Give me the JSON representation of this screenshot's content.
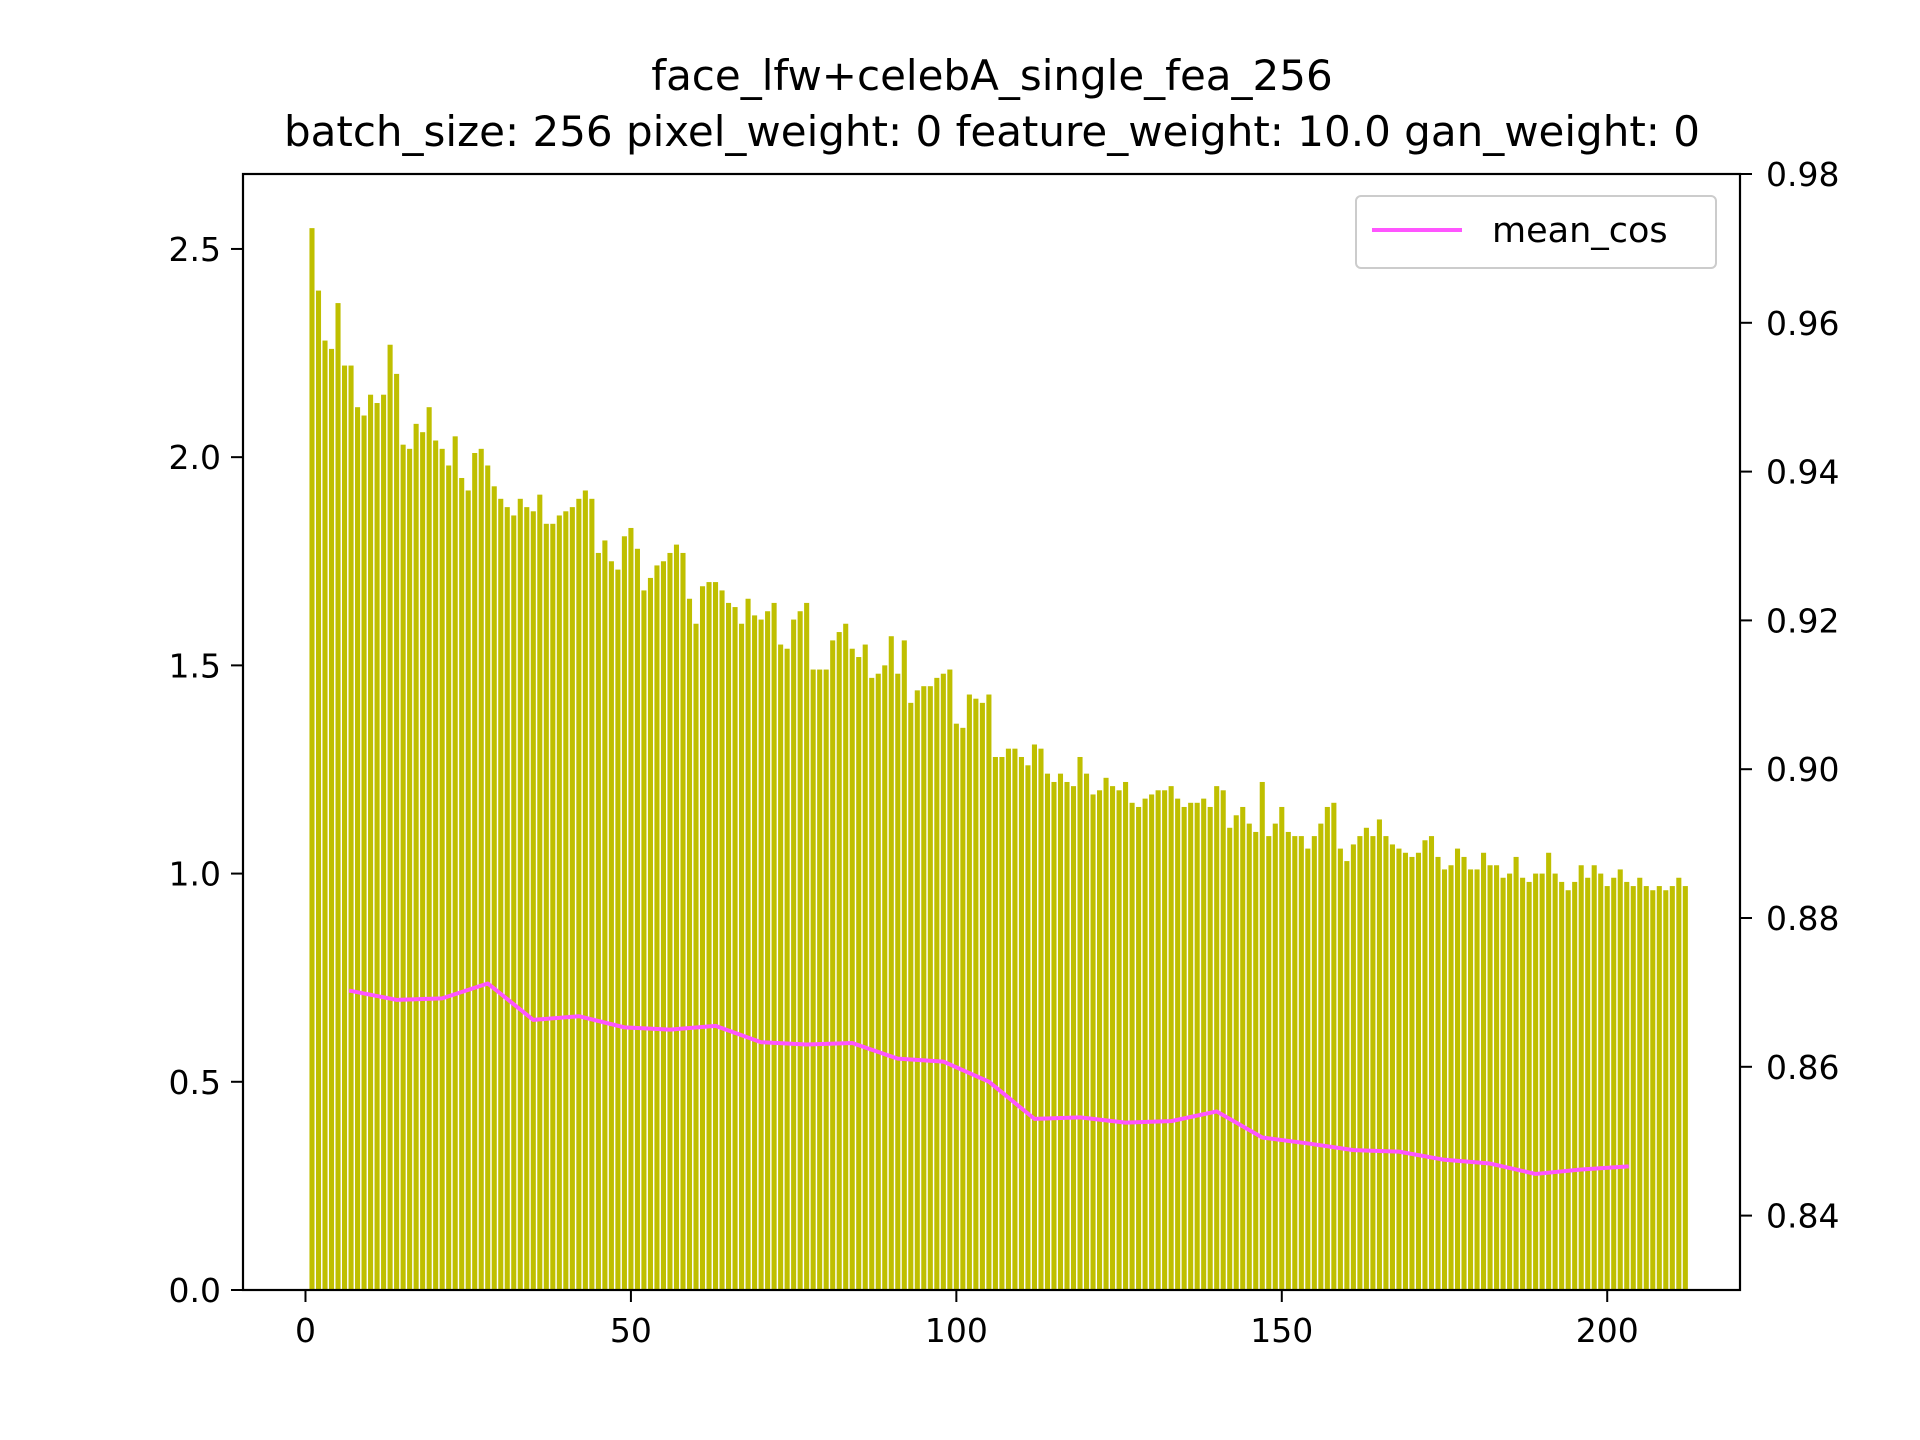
{
  "chart_data": {
    "type": "bar",
    "title": "face_lfw+celebA_single_fea_256",
    "subtitle": "batch_size: 256 pixel_weight: 0 feature_weight: 10.0 gan_weight: 0",
    "xlabel": "",
    "ylabel": "",
    "xlim": [
      -9.6,
      220.4
    ],
    "ylim": [
      0,
      2.68
    ],
    "y2lim": [
      0.83,
      0.98
    ],
    "x_ticks": [
      "0",
      "50",
      "100",
      "150",
      "200"
    ],
    "y_ticks": [
      "0.0",
      "0.5",
      "1.0",
      "1.5",
      "2.0",
      "2.5"
    ],
    "y2_ticks": [
      "0.84",
      "0.86",
      "0.88",
      "0.90",
      "0.92",
      "0.94",
      "0.96",
      "0.98"
    ],
    "grid": false,
    "legend": {
      "placement": "upper-right",
      "entries": [
        "mean_cos"
      ]
    },
    "colors": {
      "bars": "#bfbf00",
      "line": "#ff55ff",
      "axes": "#000000",
      "legend_border": "#cccccc"
    },
    "series": [
      {
        "kind": "bar",
        "axis": "left",
        "x_start": 1,
        "values": [
          2.55,
          2.4,
          2.28,
          2.26,
          2.37,
          2.22,
          2.22,
          2.12,
          2.1,
          2.15,
          2.13,
          2.15,
          2.27,
          2.2,
          2.03,
          2.02,
          2.08,
          2.06,
          2.12,
          2.04,
          2.02,
          1.98,
          2.05,
          1.95,
          1.92,
          2.01,
          2.02,
          1.98,
          1.93,
          1.9,
          1.88,
          1.86,
          1.9,
          1.88,
          1.87,
          1.91,
          1.84,
          1.84,
          1.86,
          1.87,
          1.88,
          1.9,
          1.92,
          1.9,
          1.77,
          1.8,
          1.75,
          1.73,
          1.81,
          1.83,
          1.78,
          1.68,
          1.71,
          1.74,
          1.75,
          1.77,
          1.79,
          1.77,
          1.66,
          1.6,
          1.69,
          1.7,
          1.7,
          1.68,
          1.65,
          1.64,
          1.6,
          1.66,
          1.62,
          1.61,
          1.63,
          1.65,
          1.55,
          1.54,
          1.61,
          1.63,
          1.65,
          1.49,
          1.49,
          1.49,
          1.56,
          1.58,
          1.6,
          1.54,
          1.52,
          1.55,
          1.47,
          1.48,
          1.5,
          1.57,
          1.48,
          1.56,
          1.41,
          1.44,
          1.45,
          1.45,
          1.47,
          1.48,
          1.49,
          1.36,
          1.35,
          1.43,
          1.42,
          1.41,
          1.43,
          1.28,
          1.28,
          1.3,
          1.3,
          1.28,
          1.26,
          1.31,
          1.3,
          1.24,
          1.22,
          1.24,
          1.22,
          1.21,
          1.28,
          1.24,
          1.19,
          1.2,
          1.23,
          1.21,
          1.2,
          1.22,
          1.17,
          1.16,
          1.18,
          1.19,
          1.2,
          1.2,
          1.21,
          1.18,
          1.16,
          1.17,
          1.17,
          1.18,
          1.16,
          1.21,
          1.2,
          1.11,
          1.14,
          1.16,
          1.12,
          1.1,
          1.22,
          1.09,
          1.12,
          1.16,
          1.1,
          1.09,
          1.09,
          1.06,
          1.09,
          1.12,
          1.16,
          1.17,
          1.06,
          1.03,
          1.07,
          1.09,
          1.11,
          1.09,
          1.13,
          1.09,
          1.07,
          1.06,
          1.05,
          1.04,
          1.05,
          1.08,
          1.09,
          1.04,
          1.01,
          1.02,
          1.06,
          1.04,
          1.01,
          1.01,
          1.05,
          1.02,
          1.02,
          0.99,
          1.0,
          1.04,
          0.99,
          0.98,
          1.0,
          1.0,
          1.05,
          1.0,
          0.98,
          0.96,
          0.98,
          1.02,
          0.99,
          1.02,
          1.0,
          0.97,
          0.99,
          1.01,
          0.98,
          0.97,
          0.99,
          0.97,
          0.96,
          0.97,
          0.96,
          0.97,
          0.99,
          0.97
        ]
      },
      {
        "kind": "line",
        "axis": "right",
        "name": "mean_cos",
        "x": [
          7,
          14,
          21,
          28,
          35,
          42,
          49,
          56,
          63,
          70,
          77,
          84,
          91,
          98,
          105,
          112,
          119,
          126,
          133,
          140,
          147,
          154,
          161,
          168,
          175,
          182,
          189,
          196,
          203
        ],
        "values": [
          0.8702,
          0.869,
          0.8692,
          0.8712,
          0.8663,
          0.8668,
          0.8653,
          0.865,
          0.8655,
          0.8633,
          0.863,
          0.8632,
          0.8611,
          0.8607,
          0.858,
          0.853,
          0.8532,
          0.8525,
          0.8527,
          0.854,
          0.8505,
          0.8497,
          0.8488,
          0.8486,
          0.8475,
          0.847,
          0.8456,
          0.8462,
          0.8466
        ]
      }
    ]
  }
}
